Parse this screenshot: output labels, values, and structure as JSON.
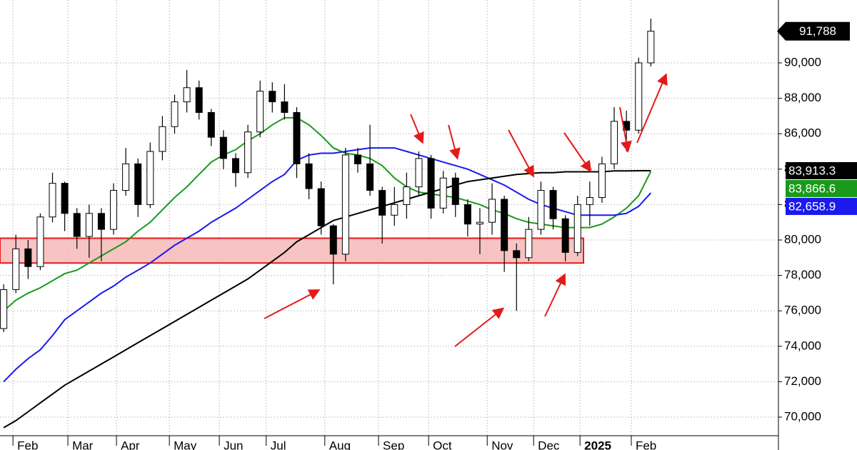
{
  "chart_data": {
    "type": "candlestick",
    "x": [
      0,
      1,
      2,
      3,
      4,
      5,
      6,
      7,
      8,
      9,
      10,
      11,
      12,
      13,
      14,
      15,
      16,
      17,
      18,
      19,
      20,
      21,
      22,
      23,
      24,
      25,
      26,
      27,
      28,
      29,
      30,
      31,
      32,
      33,
      34,
      35,
      36,
      37,
      38,
      39,
      40,
      41,
      42,
      43,
      44,
      45,
      46,
      47,
      48,
      49,
      50,
      51,
      52,
      53
    ],
    "open": [
      75000,
      77200,
      79500,
      78500,
      81300,
      83200,
      81500,
      80200,
      81500,
      80600,
      82800,
      84300,
      82000,
      85000,
      86400,
      87800,
      88600,
      87200,
      85800,
      84600,
      83800,
      86100,
      88400,
      87800,
      87200,
      84300,
      82900,
      80800,
      79200,
      84800,
      84300,
      82800,
      81400,
      82000,
      83000,
      84600,
      81800,
      83500,
      82000,
      80900,
      81000,
      82300,
      79400,
      79000,
      80600,
      82800,
      81200,
      79300,
      82000,
      82400,
      84300,
      86700,
      86200,
      90000
    ],
    "high": [
      77500,
      80300,
      80000,
      81500,
      83800,
      83300,
      81800,
      82000,
      81800,
      83200,
      85200,
      84600,
      85500,
      87000,
      88200,
      89600,
      89000,
      87400,
      86200,
      84900,
      86500,
      89000,
      88900,
      88800,
      87500,
      84900,
      83300,
      80900,
      85200,
      85200,
      86500,
      83000,
      83000,
      83800,
      85000,
      84800,
      83900,
      83800,
      82300,
      81800,
      83200,
      82500,
      79800,
      81300,
      83300,
      83000,
      81400,
      82500,
      83300,
      84700,
      87500,
      87300,
      90300,
      92500
    ],
    "low": [
      74800,
      77000,
      77800,
      78300,
      81000,
      80500,
      79500,
      79000,
      78800,
      80300,
      82500,
      81300,
      81800,
      84500,
      86000,
      87200,
      86800,
      85300,
      84000,
      83000,
      83500,
      85800,
      87200,
      86800,
      83500,
      82300,
      80300,
      77500,
      78800,
      83800,
      82500,
      79800,
      80800,
      81200,
      82500,
      81200,
      81500,
      81300,
      80200,
      79200,
      80300,
      78200,
      76000,
      78800,
      80300,
      80600,
      78800,
      79100,
      80800,
      82100,
      84000,
      85000,
      86000,
      89800
    ],
    "close": [
      77200,
      79500,
      78500,
      81300,
      83200,
      81500,
      80200,
      81500,
      80600,
      82800,
      84300,
      82000,
      85000,
      86400,
      87800,
      88600,
      87200,
      85800,
      84600,
      83800,
      86100,
      88400,
      87800,
      87200,
      84300,
      82900,
      80800,
      79200,
      84800,
      84300,
      82800,
      81400,
      82000,
      83000,
      84600,
      81800,
      83500,
      82000,
      80900,
      81000,
      82300,
      79400,
      79000,
      80600,
      82800,
      81200,
      79300,
      82000,
      82400,
      84300,
      86700,
      86200,
      90000,
      91788
    ],
    "last_label": "91,788",
    "series": [
      {
        "color": "#1a9a1a",
        "end_label": "83,866.6",
        "values": [
          76000,
          76600,
          77000,
          77300,
          77700,
          78100,
          78300,
          78700,
          79100,
          79500,
          79900,
          80500,
          81000,
          81700,
          82400,
          83000,
          83700,
          84400,
          84800,
          85100,
          85600,
          86000,
          86500,
          86900,
          86900,
          86500,
          85900,
          85200,
          84900,
          84800,
          84600,
          84200,
          83500,
          83000,
          82700,
          82600,
          82500,
          82400,
          82200,
          82000,
          81700,
          81500,
          81200,
          81000,
          80900,
          80800,
          80700,
          80700,
          80700,
          80900,
          81300,
          81800,
          82500,
          83866.6
        ]
      },
      {
        "color": "#1a1aee",
        "end_label": "82,658.9",
        "values": [
          72000,
          72700,
          73300,
          73800,
          74600,
          75500,
          76000,
          76500,
          77000,
          77400,
          77900,
          78300,
          78700,
          79200,
          79700,
          80100,
          80500,
          81000,
          81400,
          81800,
          82300,
          82800,
          83300,
          83700,
          84500,
          84800,
          84900,
          84900,
          85000,
          85100,
          85200,
          85200,
          85200,
          85000,
          84800,
          84600,
          84400,
          84200,
          84000,
          83700,
          83400,
          83100,
          82700,
          82300,
          82000,
          81800,
          81600,
          81400,
          81400,
          81400,
          81400,
          81500,
          81900,
          82658.9
        ]
      },
      {
        "color": "#000000",
        "end_label": "83,913.3",
        "values": [
          69400,
          69800,
          70300,
          70800,
          71300,
          71800,
          72200,
          72600,
          73000,
          73400,
          73800,
          74200,
          74600,
          75000,
          75400,
          75800,
          76200,
          76600,
          77000,
          77400,
          77800,
          78300,
          78800,
          79300,
          79900,
          80300,
          80700,
          81100,
          81300,
          81500,
          81700,
          81900,
          82100,
          82300,
          82500,
          82700,
          82900,
          83100,
          83300,
          83400,
          83500,
          83600,
          83700,
          83750,
          83800,
          83800,
          83850,
          83850,
          83850,
          83850,
          83900,
          83900,
          83910,
          83913.3
        ]
      }
    ],
    "band": [
      78700,
      80100
    ],
    "xlim": [
      -0.3,
      63.45
    ],
    "xticks": [
      {
        "value": 0.76,
        "label": "Feb"
      },
      {
        "value": 5.26,
        "label": "Mar"
      },
      {
        "value": 9.24,
        "label": "Apr"
      },
      {
        "value": 13.57,
        "label": "May"
      },
      {
        "value": 17.66,
        "label": "Jun"
      },
      {
        "value": 21.5,
        "label": "Jul"
      },
      {
        "value": 26.3,
        "label": "Aug"
      },
      {
        "value": 30.7,
        "label": "Sep"
      },
      {
        "value": 34.8,
        "label": "Oct"
      },
      {
        "value": 39.6,
        "label": "Nov"
      },
      {
        "value": 43.4,
        "label": "Dec"
      },
      {
        "value": 47.2,
        "label": "2025"
      },
      {
        "value": 51.4,
        "label": "Feb"
      }
    ],
    "ylim": [
      68950,
      93550
    ],
    "yticks": [
      {
        "value": 70000,
        "label": "70,000"
      },
      {
        "value": 72000,
        "label": "72,000"
      },
      {
        "value": 74000,
        "label": "74,000"
      },
      {
        "value": 76000,
        "label": "76,000"
      },
      {
        "value": 78000,
        "label": "78,000"
      },
      {
        "value": 80000,
        "label": "80,000"
      },
      {
        "value": 82000,
        "label": "82,000"
      },
      {
        "value": 84000,
        "label": "84,000"
      },
      {
        "value": 86000,
        "label": "86,000"
      },
      {
        "value": 88000,
        "label": "88,000"
      },
      {
        "value": 90000,
        "label": "90,000"
      }
    ],
    "grid": true
  }
}
